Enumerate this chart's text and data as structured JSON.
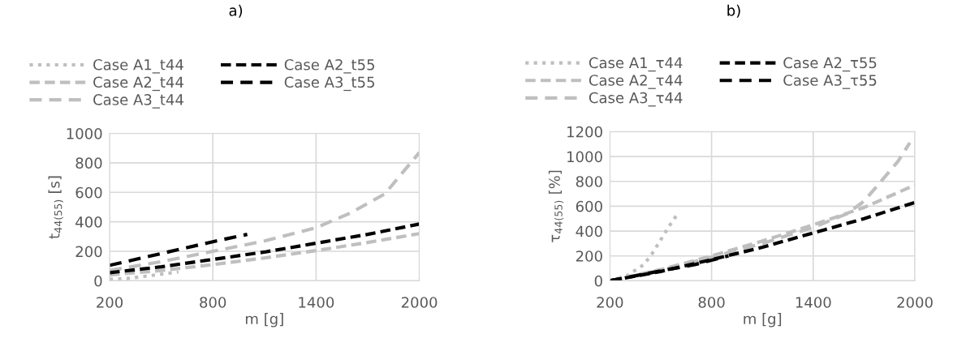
{
  "chart_data": [
    {
      "type": "line",
      "title": "a)",
      "xlabel": "m [g]",
      "ylabel": "t$_{44(55)}$ [s]",
      "xlim": [
        200,
        2000
      ],
      "xticks": [
        200,
        800,
        1400,
        2000
      ],
      "ylim": [
        0,
        1000
      ],
      "yticks": [
        0,
        200,
        400,
        600,
        800,
        1000
      ],
      "grid": true,
      "legend": "top",
      "marker": "none",
      "series": [
        {
          "name": "Case A1_t44",
          "color": "#bfbfbf",
          "line_style": "dotted",
          "x": [
            200,
            300,
            400,
            500,
            600
          ],
          "values": [
            10,
            15,
            30,
            45,
            60
          ]
        },
        {
          "name": "Case A2_t44",
          "color": "#bfbfbf",
          "line_style": "dashed",
          "x": [
            200,
            500,
            800,
            1100,
            1400,
            1700,
            2000
          ],
          "values": [
            40,
            70,
            110,
            155,
            205,
            260,
            320
          ]
        },
        {
          "name": "Case A3_t44",
          "color": "#bfbfbf",
          "line_style": "dashed",
          "x": [
            200,
            500,
            800,
            1100,
            1400,
            1600,
            1800,
            2000
          ],
          "values": [
            70,
            130,
            200,
            270,
            360,
            460,
            590,
            870
          ]
        },
        {
          "name": "Case A2_t55",
          "color": "#000000",
          "line_style": "dashed",
          "x": [
            200,
            500,
            800,
            1100,
            1400,
            1700,
            2000
          ],
          "values": [
            55,
            95,
            145,
            195,
            255,
            315,
            385
          ]
        },
        {
          "name": "Case A3_t55",
          "color": "#000000",
          "line_style": "dashed",
          "x": [
            200,
            500,
            800,
            1000
          ],
          "values": [
            105,
            185,
            265,
            315
          ]
        }
      ]
    },
    {
      "type": "line",
      "title": "b)",
      "xlabel": "m [g]",
      "ylabel": "τ$_{44(55)}$ [%]",
      "xlim": [
        200,
        2000
      ],
      "xticks": [
        200,
        800,
        1400,
        2000
      ],
      "ylim": [
        0,
        1200
      ],
      "yticks": [
        0,
        200,
        400,
        600,
        800,
        1000,
        1200
      ],
      "grid": true,
      "legend": "top",
      "marker": "none",
      "series": [
        {
          "name": "Case A1_τ44",
          "color": "#bfbfbf",
          "line_style": "dotted",
          "x": [
            200,
            300,
            400,
            450,
            500,
            550,
            600
          ],
          "values": [
            0,
            40,
            130,
            220,
            330,
            440,
            540
          ]
        },
        {
          "name": "Case A2_τ44",
          "color": "#bfbfbf",
          "line_style": "dashed",
          "x": [
            200,
            500,
            800,
            1100,
            1400,
            1700,
            2000
          ],
          "values": [
            0,
            90,
            200,
            320,
            450,
            590,
            770
          ]
        },
        {
          "name": "Case A3_τ44",
          "color": "#bfbfbf",
          "line_style": "dashed",
          "x": [
            200,
            500,
            800,
            1100,
            1400,
            1600,
            1700,
            1800,
            1900,
            1970
          ],
          "values": [
            0,
            85,
            190,
            300,
            430,
            540,
            640,
            800,
            960,
            1110
          ]
        },
        {
          "name": "Case A2_τ55",
          "color": "#000000",
          "line_style": "dashed",
          "x": [
            200,
            500,
            800,
            1100,
            1400,
            1700,
            2000
          ],
          "values": [
            0,
            75,
            170,
            270,
            385,
            500,
            630
          ]
        },
        {
          "name": "Case A3_τ55",
          "color": "#000000",
          "line_style": "dashed",
          "x": [
            200,
            500,
            700,
            900
          ],
          "values": [
            0,
            80,
            130,
            200
          ]
        }
      ]
    }
  ]
}
